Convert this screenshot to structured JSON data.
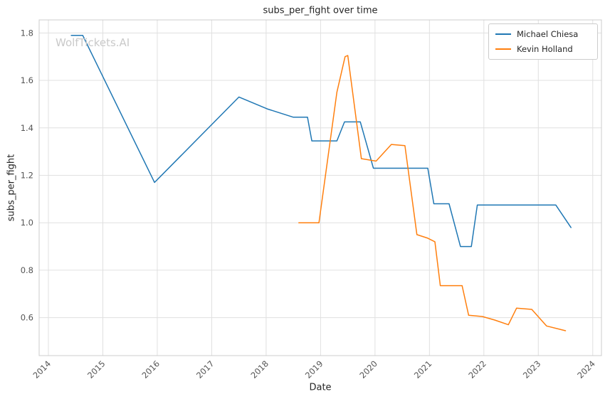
{
  "watermark": "WolfTickets.AI",
  "chart_data": {
    "type": "line",
    "title": "subs_per_fight over time",
    "xlabel": "Date",
    "ylabel": "subs_per_fight",
    "xlim": [
      2013.83,
      2024.16
    ],
    "ylim": [
      0.44,
      1.855
    ],
    "x_ticks": [
      2014,
      2015,
      2016,
      2017,
      2018,
      2019,
      2020,
      2021,
      2022,
      2023,
      2024
    ],
    "y_ticks": [
      0.6,
      0.8,
      1.0,
      1.2,
      1.4,
      1.6,
      1.8
    ],
    "grid": true,
    "legend_position": "upper right",
    "colors": {
      "grid": "#e0e0e0",
      "border": "#cccccc",
      "tick": "#555555"
    },
    "series": [
      {
        "name": "Michael Chiesa",
        "color": "#1f77b4",
        "x": [
          2014.42,
          2014.63,
          2015.95,
          2017.5,
          2018.02,
          2018.5,
          2018.76,
          2018.84,
          2019.3,
          2019.44,
          2019.73,
          2019.97,
          2020.97,
          2021.08,
          2021.36,
          2021.57,
          2021.77,
          2021.88,
          2023.32,
          2023.6
        ],
        "y": [
          1.79,
          1.79,
          1.17,
          1.53,
          1.48,
          1.445,
          1.445,
          1.345,
          1.345,
          1.425,
          1.425,
          1.23,
          1.23,
          1.08,
          1.08,
          0.9,
          0.9,
          1.075,
          1.075,
          0.98
        ]
      },
      {
        "name": "Kevin Holland",
        "color": "#ff7f0e",
        "x": [
          2018.6,
          2018.97,
          2019.3,
          2019.45,
          2019.5,
          2019.75,
          2020.02,
          2020.3,
          2020.55,
          2020.77,
          2020.97,
          2021.1,
          2021.2,
          2021.6,
          2021.72,
          2021.97,
          2022.2,
          2022.45,
          2022.6,
          2022.88,
          2023.15,
          2023.5
        ],
        "y": [
          1.0,
          1.0,
          1.55,
          1.7,
          1.705,
          1.27,
          1.26,
          1.33,
          1.325,
          0.95,
          0.935,
          0.92,
          0.735,
          0.735,
          0.61,
          0.605,
          0.59,
          0.57,
          0.64,
          0.635,
          0.565,
          0.545
        ]
      }
    ]
  }
}
